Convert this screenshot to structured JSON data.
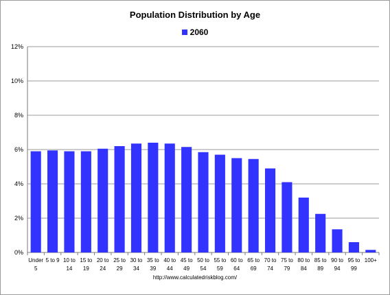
{
  "chart_data": {
    "type": "bar",
    "title": "Population Distribution by Age",
    "xlabel": "",
    "ylabel": "",
    "categories": [
      [
        "Under",
        "5"
      ],
      [
        "5 to 9",
        ""
      ],
      [
        "10 to",
        "14"
      ],
      [
        "15 to",
        "19"
      ],
      [
        "20 to",
        "24"
      ],
      [
        "25 to",
        "29"
      ],
      [
        "30 to",
        "34"
      ],
      [
        "35 to",
        "39"
      ],
      [
        "40 to",
        "44"
      ],
      [
        "45 to",
        "49"
      ],
      [
        "50 to",
        "54"
      ],
      [
        "55 to",
        "59"
      ],
      [
        "60 to",
        "64"
      ],
      [
        "65 to",
        "69"
      ],
      [
        "70 to",
        "74"
      ],
      [
        "75 to",
        "79"
      ],
      [
        "80 to",
        "84"
      ],
      [
        "85 to",
        "89"
      ],
      [
        "90 to",
        "94"
      ],
      [
        "95 to",
        "99"
      ],
      [
        "100+",
        ""
      ]
    ],
    "series": [
      {
        "name": "2060",
        "color": "#3333ff",
        "values": [
          5.9,
          5.95,
          5.9,
          5.9,
          6.05,
          6.2,
          6.35,
          6.4,
          6.35,
          6.15,
          5.85,
          5.7,
          5.5,
          5.45,
          4.9,
          4.1,
          3.2,
          2.25,
          1.35,
          0.6,
          0.15
        ]
      }
    ],
    "ylim": [
      0,
      12
    ],
    "yticks": [
      0,
      2,
      4,
      6,
      8,
      10,
      12
    ],
    "ytick_format": "percent",
    "grid": true,
    "legend_position": "top-center"
  },
  "source": "http://www.calculatedriskblog.com/"
}
